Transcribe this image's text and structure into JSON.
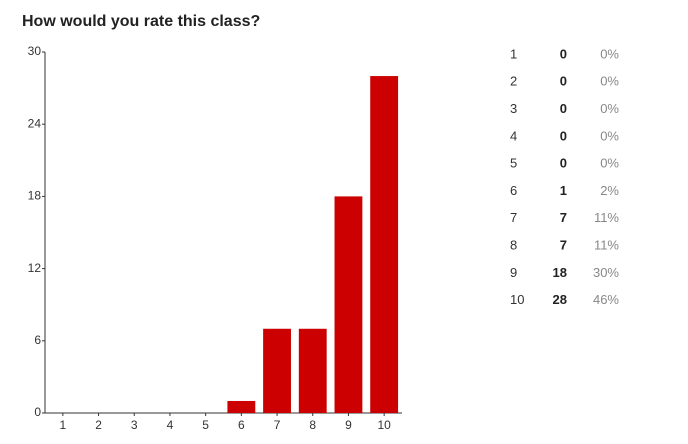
{
  "chart_data": {
    "type": "bar",
    "title": "How would you rate this class?",
    "categories": [
      "1",
      "2",
      "3",
      "4",
      "5",
      "6",
      "7",
      "8",
      "9",
      "10"
    ],
    "values": [
      0,
      0,
      0,
      0,
      0,
      1,
      7,
      7,
      18,
      28
    ],
    "percent_labels": [
      "0%",
      "0%",
      "0%",
      "0%",
      "0%",
      "2%",
      "11%",
      "11%",
      "30%",
      "46%"
    ],
    "color": "#cc0000",
    "ylim": [
      0,
      30
    ],
    "yticks": [
      0,
      6,
      12,
      18,
      24,
      30
    ],
    "grid": false
  }
}
